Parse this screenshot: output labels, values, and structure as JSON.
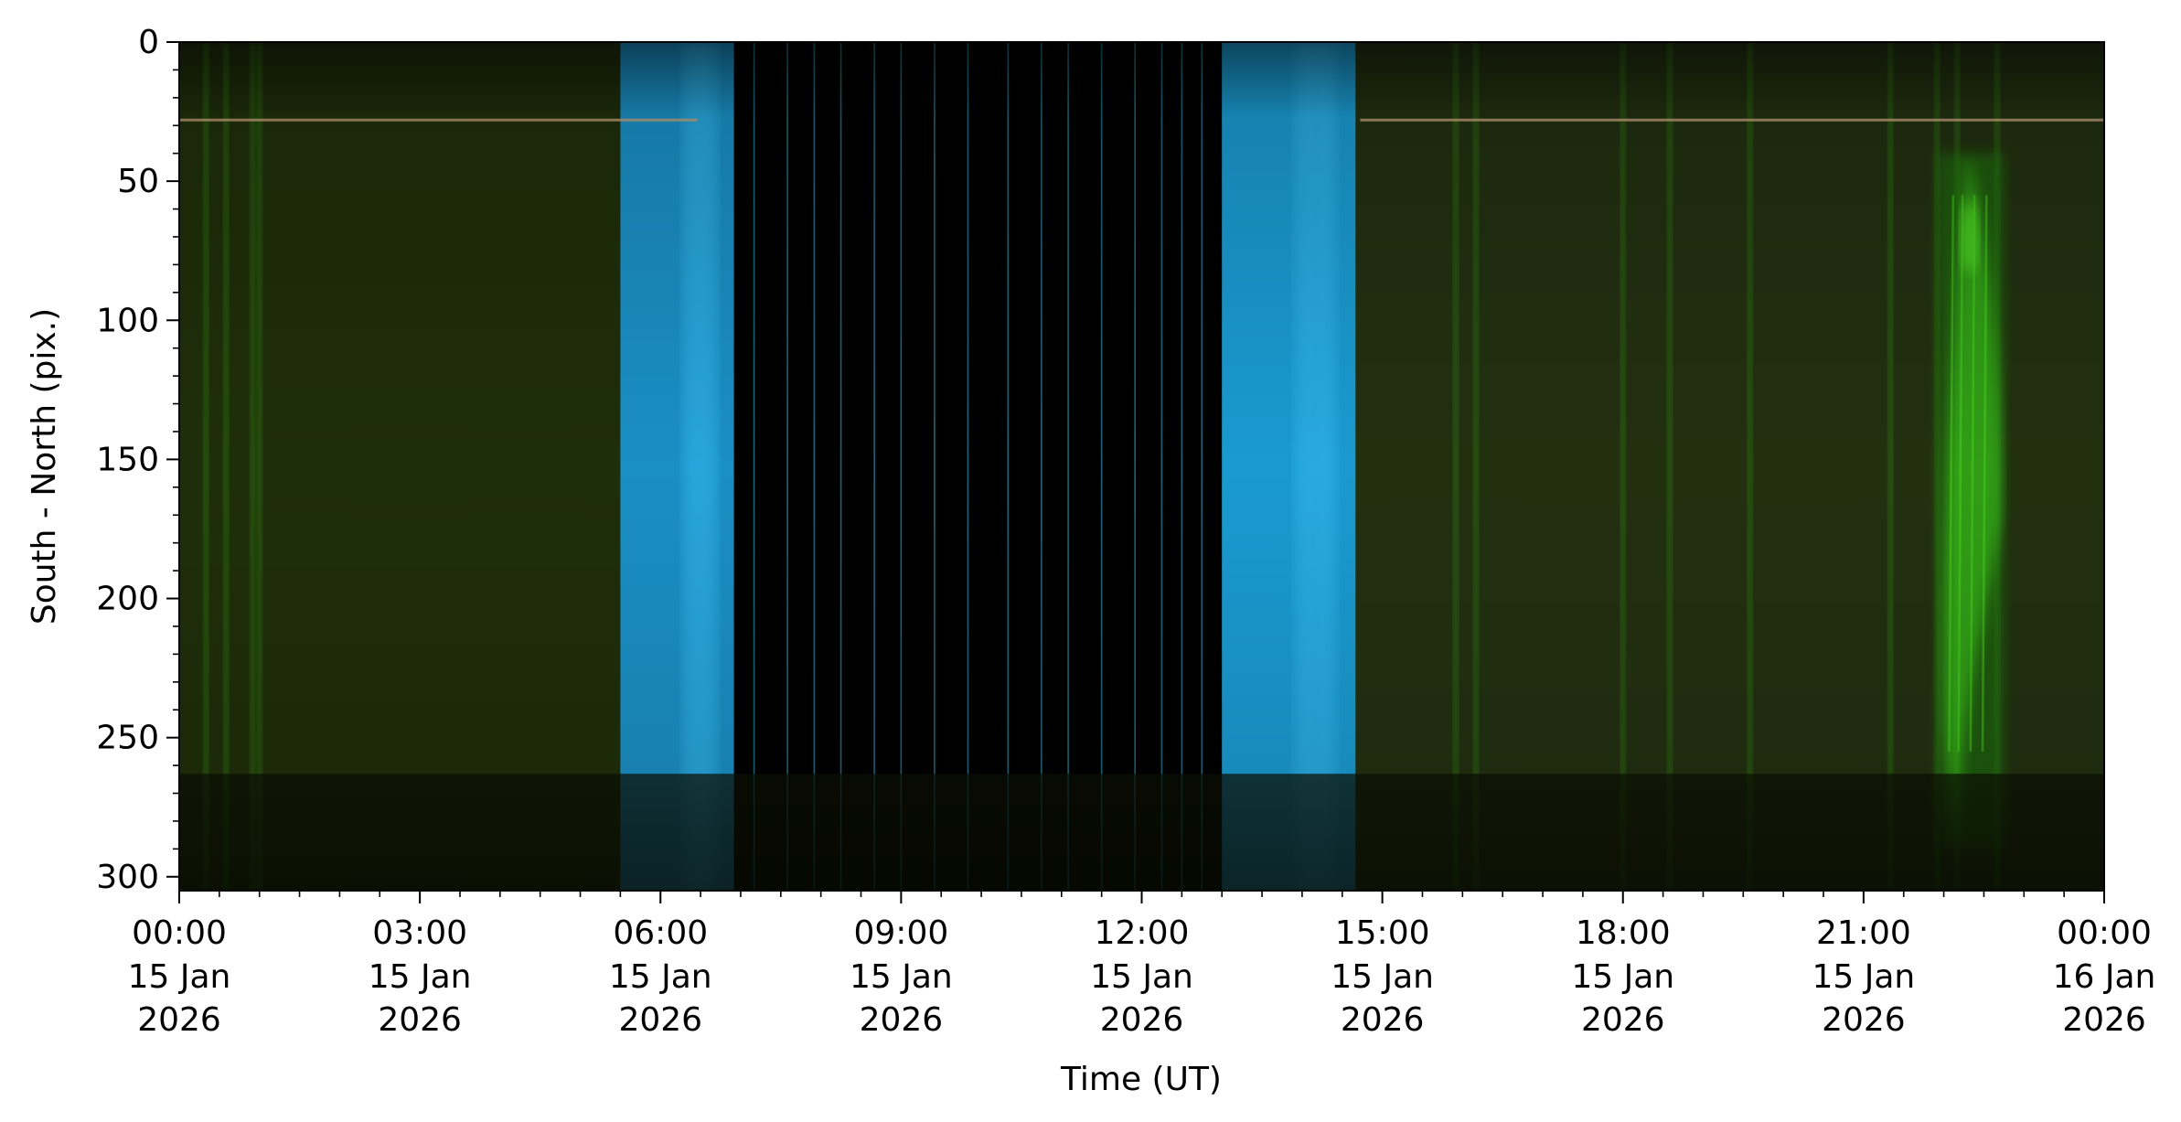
{
  "chart_data": {
    "type": "heatmap",
    "title": "",
    "xlabel": "Time (UT)",
    "ylabel": "South - North (pix.)",
    "xlim": [
      "2026-01-15T00:00",
      "2026-01-16T00:00"
    ],
    "ylim": [
      305,
      0
    ],
    "y_inverted": true,
    "grid": false,
    "legend": "none",
    "x_ticks": [
      {
        "time": "2026-01-15T00:00",
        "hhmm": "00:00",
        "date": "15 Jan",
        "year": "2026"
      },
      {
        "time": "2026-01-15T03:00",
        "hhmm": "03:00",
        "date": "15 Jan",
        "year": "2026"
      },
      {
        "time": "2026-01-15T06:00",
        "hhmm": "06:00",
        "date": "15 Jan",
        "year": "2026"
      },
      {
        "time": "2026-01-15T09:00",
        "hhmm": "09:00",
        "date": "15 Jan",
        "year": "2026"
      },
      {
        "time": "2026-01-15T12:00",
        "hhmm": "12:00",
        "date": "15 Jan",
        "year": "2026"
      },
      {
        "time": "2026-01-15T15:00",
        "hhmm": "15:00",
        "date": "15 Jan",
        "year": "2026"
      },
      {
        "time": "2026-01-15T18:00",
        "hhmm": "18:00",
        "date": "15 Jan",
        "year": "2026"
      },
      {
        "time": "2026-01-15T21:00",
        "hhmm": "21:00",
        "date": "15 Jan",
        "year": "2026"
      },
      {
        "time": "2026-01-16T00:00",
        "hhmm": "00:00",
        "date": "16 Jan",
        "year": "2026"
      }
    ],
    "y_ticks": [
      0,
      50,
      100,
      150,
      200,
      250,
      300
    ],
    "y_minor_step": 10,
    "x_minor_step_hours": 0.5,
    "segments": [
      {
        "start": "2026-01-15T00:00",
        "end": "2026-01-15T05:30",
        "tone": "dim-green",
        "color": "#1f2e0a"
      },
      {
        "start": "2026-01-15T05:30",
        "end": "2026-01-15T06:55",
        "tone": "twilight-blue",
        "color": "#1a8fc4"
      },
      {
        "start": "2026-01-15T06:55",
        "end": "2026-01-15T13:00",
        "tone": "daylight-black",
        "color": "#000000"
      },
      {
        "start": "2026-01-15T13:00",
        "end": "2026-01-15T14:40",
        "tone": "twilight-blue",
        "color": "#1a9ad0"
      },
      {
        "start": "2026-01-15T14:40",
        "end": "2026-01-15T24:00",
        "tone": "dim-green",
        "color": "#223010"
      }
    ],
    "daylight_thin_lines": [
      "07:10",
      "07:35",
      "07:55",
      "08:15",
      "08:40",
      "09:00",
      "09:25",
      "09:50",
      "10:20",
      "10:45",
      "11:05",
      "11:30",
      "11:55",
      "12:15",
      "12:30",
      "12:45"
    ],
    "green_streaks": [
      "00:20",
      "00:35",
      "00:55",
      "01:00",
      "15:55",
      "16:10",
      "18:00",
      "18:35",
      "19:35",
      "21:20",
      "21:55",
      "22:10",
      "22:40"
    ],
    "aurora_event": {
      "start": "2026-01-15T21:55",
      "end": "2026-01-15T22:45",
      "y_range": [
        40,
        290
      ],
      "peak_y": 70,
      "color": "#3fd61a"
    },
    "horizontal_bands": [
      {
        "y": 28,
        "tone": "warm-trace",
        "color": "#c4a27a"
      },
      {
        "y_range": [
          263,
          305
        ],
        "tone": "dark-lower-band",
        "color": "#0d1004"
      }
    ]
  }
}
